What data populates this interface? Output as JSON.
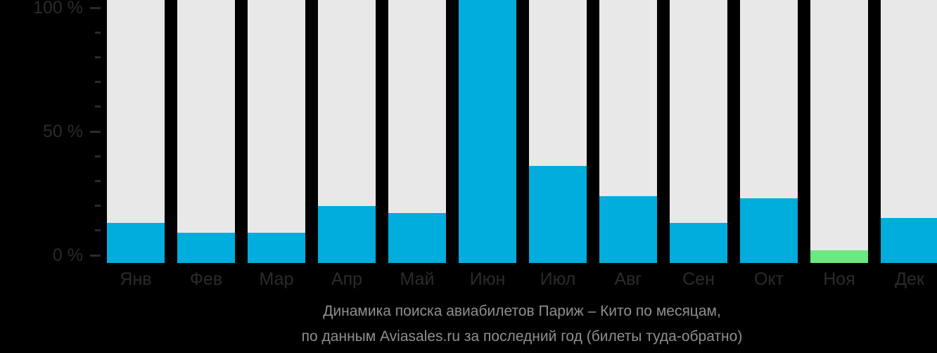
{
  "colors": {
    "background": "#000000",
    "bar_track": "#E8E8E8",
    "bar_fill": "#00ADDC",
    "bar_highlight": "#6CE87E",
    "axis_text": "#2B2B2B",
    "tick": "#2B2B2B",
    "caption_text": "#8F8F8F"
  },
  "y_axis": {
    "labeled_ticks": [
      {
        "value": 100,
        "label": "100 %"
      },
      {
        "value": 50,
        "label": "50 %"
      },
      {
        "value": 0,
        "label": "0 %"
      }
    ],
    "minor_tick_step_pct": 10
  },
  "caption": {
    "line1": "Динамика поиска авиабилетов Париж – Кито по месяцам,",
    "line2": "по данным Aviasales.ru за последний год (билеты туда-обратно)"
  },
  "chart_data": {
    "type": "bar",
    "title": "Динамика поиска авиабилетов Париж – Кито по месяцам, по данным Aviasales.ru за последний год (билеты туда-обратно)",
    "categories": [
      "Янв",
      "Фев",
      "Мар",
      "Апр",
      "Май",
      "Июн",
      "Июл",
      "Авг",
      "Сен",
      "Окт",
      "Ноя",
      "Дек"
    ],
    "values": [
      13,
      9,
      9,
      20,
      17,
      100,
      36,
      24,
      13,
      23,
      2,
      15
    ],
    "unit": "%",
    "ylim": [
      0,
      100
    ],
    "yticks": [
      0,
      50,
      100
    ],
    "grid": false,
    "legend": false,
    "highlight_index": 10,
    "highlighted_month": "Ноя"
  }
}
